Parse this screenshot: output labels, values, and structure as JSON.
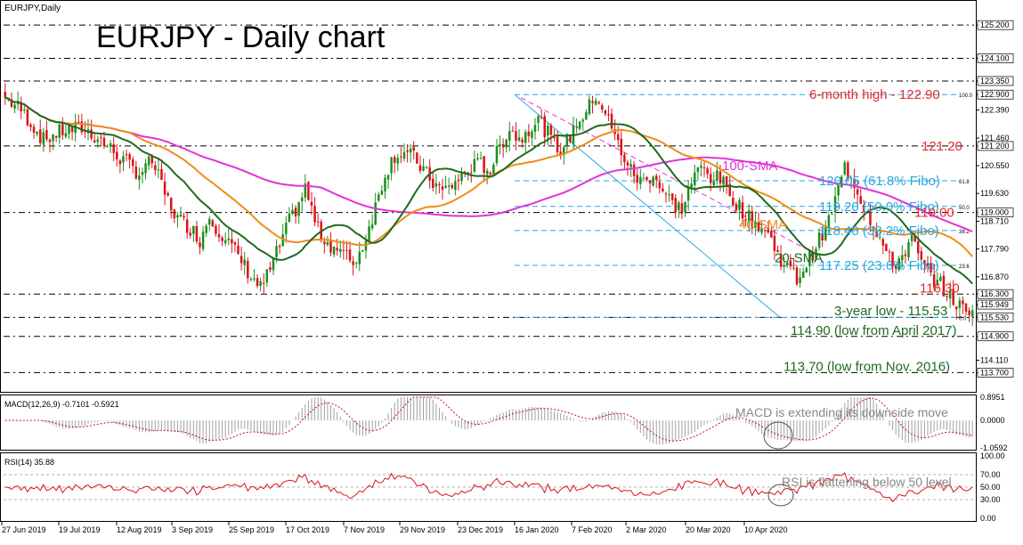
{
  "header": {
    "symbol": "EURJPY,Daily",
    "title": "EURJPY - Daily chart"
  },
  "chart_data": {
    "type": "candlestick",
    "symbol": "EURJPY",
    "timeframe": "Daily",
    "price_axis_ticks": [
      125.2,
      124.1,
      123.35,
      122.39,
      121.46,
      120.55,
      119.63,
      118.71,
      117.79,
      116.87,
      115.949,
      114.11
    ],
    "price_axis_highlight_labels": [
      {
        "value": 125.2,
        "label": "125.200"
      },
      {
        "value": 124.1,
        "label": "124.100"
      },
      {
        "value": 123.35,
        "label": "123.350"
      },
      {
        "value": 122.9,
        "label": "122.900"
      },
      {
        "value": 122.39,
        "label": "122.390"
      },
      {
        "value": 121.46,
        "label": "121.460"
      },
      {
        "value": 121.2,
        "label": "121.200"
      },
      {
        "value": 120.55,
        "label": "120.550"
      },
      {
        "value": 119.63,
        "label": "119.630"
      },
      {
        "value": 119.0,
        "label": "119.000"
      },
      {
        "value": 118.71,
        "label": "118.710"
      },
      {
        "value": 117.79,
        "label": "117.790"
      },
      {
        "value": 116.87,
        "label": "116.870"
      },
      {
        "value": 116.3,
        "label": "116.300"
      },
      {
        "value": 115.949,
        "label": "115.949"
      },
      {
        "value": 115.53,
        "label": "115.530"
      },
      {
        "value": 114.9,
        "label": "114.900"
      },
      {
        "value": 114.11,
        "label": "114.110"
      },
      {
        "value": 113.7,
        "label": "113.700"
      }
    ],
    "date_labels": [
      "27 Jun 2019",
      "19 Jul 2019",
      "12 Aug 2019",
      "3 Sep 2019",
      "25 Sep 2019",
      "17 Oct 2019",
      "7 Nov 2019",
      "29 Nov 2019",
      "23 Dec 2019",
      "16 Jan 2020",
      "7 Feb 2020",
      "2 Mar 2020",
      "20 Mar 2020",
      "10 Apr 2020"
    ],
    "close_path": [
      [
        0,
        122.8
      ],
      [
        5,
        122.4
      ],
      [
        12,
        121.4
      ],
      [
        18,
        121.7
      ],
      [
        24,
        121.8
      ],
      [
        30,
        121.4
      ],
      [
        36,
        120.8
      ],
      [
        42,
        120.3
      ],
      [
        46,
        120.7
      ],
      [
        50,
        119.6
      ],
      [
        54,
        118.8
      ],
      [
        58,
        118.5
      ],
      [
        61,
        118.1
      ],
      [
        64,
        118.9
      ],
      [
        67,
        118.4
      ],
      [
        70,
        118.0
      ],
      [
        74,
        117.4
      ],
      [
        77,
        116.9
      ],
      [
        80,
        116.5
      ],
      [
        83,
        117.1
      ],
      [
        86,
        117.9
      ],
      [
        89,
        118.7
      ],
      [
        92,
        119.3
      ],
      [
        94,
        119.8
      ],
      [
        96,
        119.1
      ],
      [
        98,
        118.4
      ],
      [
        101,
        118.0
      ],
      [
        104,
        117.8
      ],
      [
        107,
        117.5
      ],
      [
        110,
        117.4
      ],
      [
        113,
        118.2
      ],
      [
        116,
        119.2
      ],
      [
        119,
        120.3
      ],
      [
        122,
        120.9
      ],
      [
        125,
        121.0
      ],
      [
        128,
        120.8
      ],
      [
        131,
        120.4
      ],
      [
        134,
        120.0
      ],
      [
        137,
        119.7
      ],
      [
        140,
        119.9
      ],
      [
        143,
        120.2
      ],
      [
        146,
        120.5
      ],
      [
        149,
        120.6
      ],
      [
        152,
        120.4
      ],
      [
        155,
        121.2
      ],
      [
        158,
        121.8
      ],
      [
        161,
        121.4
      ],
      [
        164,
        121.8
      ],
      [
        167,
        122.1
      ],
      [
        170,
        121.6
      ],
      [
        173,
        121.1
      ],
      [
        176,
        121.3
      ],
      [
        179,
        122.0
      ],
      [
        182,
        122.3
      ],
      [
        185,
        122.9
      ],
      [
        188,
        122.3
      ],
      [
        191,
        121.5
      ],
      [
        194,
        120.8
      ],
      [
        197,
        120.2
      ],
      [
        200,
        120.0
      ],
      [
        203,
        120.3
      ],
      [
        206,
        119.7
      ],
      [
        209,
        119.3
      ],
      [
        212,
        119.1
      ],
      [
        215,
        120.0
      ],
      [
        218,
        120.5
      ],
      [
        221,
        120.2
      ],
      [
        224,
        120.1
      ],
      [
        227,
        119.6
      ],
      [
        230,
        119.2
      ],
      [
        233,
        118.8
      ],
      [
        236,
        118.6
      ],
      [
        239,
        118.3
      ],
      [
        242,
        117.6
      ],
      [
        245,
        117.2
      ],
      [
        248,
        116.8
      ],
      [
        251,
        117.3
      ],
      [
        254,
        117.9
      ],
      [
        257,
        118.4
      ],
      [
        260,
        119.4
      ],
      [
        263,
        120.5
      ],
      [
        266,
        120.0
      ],
      [
        269,
        119.2
      ],
      [
        272,
        118.6
      ],
      [
        275,
        117.9
      ],
      [
        278,
        117.2
      ],
      [
        281,
        117.6
      ],
      [
        284,
        118.1
      ],
      [
        287,
        117.3
      ],
      [
        290,
        116.9
      ],
      [
        293,
        116.6
      ],
      [
        296,
        116.2
      ],
      [
        299,
        115.9
      ],
      [
        301,
        115.7
      ],
      [
        303,
        115.95
      ]
    ],
    "bars_count": 304,
    "price_ylim": [
      113.3,
      125.5
    ],
    "indicators": {
      "sma20": {
        "label": "20-SMA",
        "color": "#1e6b1e"
      },
      "sma40": {
        "label": "40-SMA",
        "color": "#f08c1a"
      },
      "sma100": {
        "label": "100-SMA",
        "color": "#e233d6"
      }
    },
    "fibonacci": {
      "levels": [
        "100.0",
        "61.8",
        "50.0",
        "38.2",
        "23.6",
        "0.0"
      ],
      "prices": [
        122.9,
        120.05,
        119.2,
        118.4,
        117.25,
        115.53
      ]
    },
    "annotations": [
      {
        "text": "6-month high - 122.90",
        "color": "#e8282d"
      },
      {
        "text": "121.20",
        "color": "#e8282d"
      },
      {
        "text": "100-SMA",
        "color": "#e233d6"
      },
      {
        "text": "120.05 (61.8% Fibo)",
        "color": "#29a8e0"
      },
      {
        "text": "119.20 (50.0% Fibo)",
        "color": "#29a8e0"
      },
      {
        "text": "119.00",
        "color": "#e8282d"
      },
      {
        "text": "40-SMA",
        "color": "#f08c1a"
      },
      {
        "text": "118.40 (38.2% Fibo)",
        "color": "#29a8e0"
      },
      {
        "text": "20-SMA",
        "color": "#1e6b1e"
      },
      {
        "text": "117.25 (23.6% Fibo)",
        "color": "#29a8e0"
      },
      {
        "text": "116.30",
        "color": "#e8282d"
      },
      {
        "text": "3-year low - 115.53",
        "color": "#1e6b1e"
      },
      {
        "text": "114.90 (low from April 2017)",
        "color": "#1e6b1e"
      },
      {
        "text": "113.70 (low from Nov. 2016)",
        "color": "#1e6b1e"
      }
    ],
    "macd": {
      "label": "MACD(12,26,9) -0.7101 -0.5921",
      "axis_labels": [
        "0.8951",
        "0.0000",
        "-1.0592"
      ],
      "ylim": [
        -1.0592,
        0.8951
      ],
      "note": "MACD is extending its downside move"
    },
    "rsi": {
      "label": "RSI(14) 35.88",
      "axis_labels": [
        "100.00",
        "70.00",
        "50.00",
        "30.00",
        "0.00"
      ],
      "ylim": [
        0,
        100
      ],
      "levels": [
        70,
        50,
        30
      ],
      "note": "RSI is flattening below 50 level"
    }
  },
  "colors": {
    "bull": "#1e8f1e",
    "bear": "#d8141a",
    "fib": "#29a8e0",
    "signal": "#c8141a",
    "macd_hist": "#a0a0a0"
  }
}
